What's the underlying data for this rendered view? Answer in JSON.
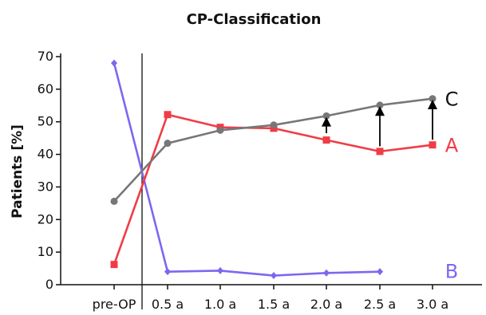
{
  "chart_data": {
    "type": "line",
    "title": "CP-Classification",
    "ylabel": "Patients [%]",
    "xlabel": "",
    "categories": [
      "pre-OP",
      "0.5 a",
      "1.0 a",
      "1.5 a",
      "2.0 a",
      "2.5 a",
      "3.0 a"
    ],
    "ylim": [
      0,
      70
    ],
    "yticks": [
      0,
      10,
      20,
      30,
      40,
      50,
      60,
      70
    ],
    "grid": false,
    "series": [
      {
        "name": "A",
        "color": "#f03c46",
        "marker": "square",
        "values": [
          6.2,
          52.2,
          48.3,
          48.0,
          44.4,
          40.9,
          42.9
        ]
      },
      {
        "name": "B",
        "color": "#7b68f0",
        "marker": "diamond",
        "values": [
          68.0,
          4.0,
          4.3,
          2.8,
          3.6,
          4.0,
          null
        ]
      },
      {
        "name": "C",
        "color": "#777777",
        "marker": "circle",
        "values": [
          25.6,
          43.4,
          47.4,
          49.0,
          51.8,
          55.1,
          57.1
        ]
      }
    ],
    "annotations": [
      {
        "type": "arrow",
        "category": "2.0 a",
        "from": 46.5,
        "to": 50.5
      },
      {
        "type": "arrow",
        "category": "2.5 a",
        "from": 42.5,
        "to": 53.8
      },
      {
        "type": "arrow",
        "category": "3.0 a",
        "from": 44.5,
        "to": 55.8
      }
    ],
    "divider_after": "pre-OP"
  }
}
